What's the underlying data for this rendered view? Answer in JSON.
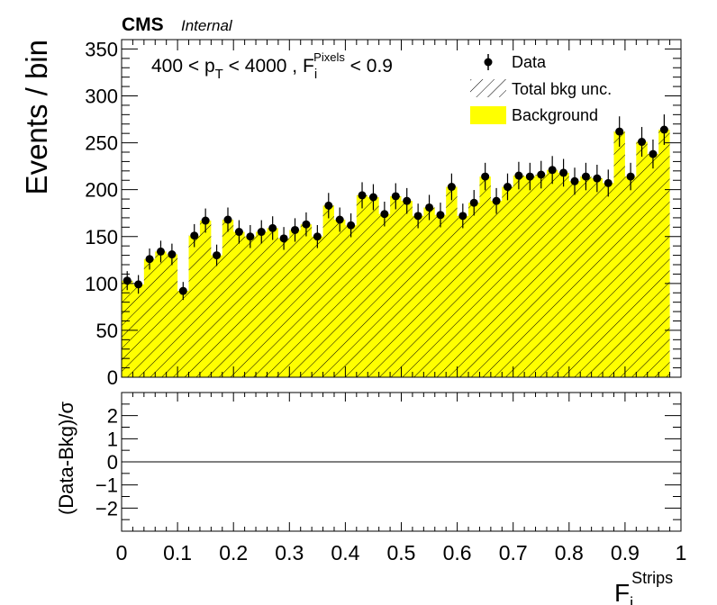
{
  "header": {
    "experiment": "CMS",
    "status": "Internal"
  },
  "cut_label": {
    "prefix": "400 < p",
    "pt_sub": "T",
    "middle": " < 4000 , F",
    "f_sub": "i",
    "f_sup": "Pixels",
    "suffix": " < 0.9"
  },
  "legend": {
    "placement": "top-right",
    "entries": [
      {
        "label": "Data",
        "style": "marker"
      },
      {
        "label": "Total bkg unc.",
        "style": "hatch"
      },
      {
        "label": "Background",
        "style": "fill"
      }
    ]
  },
  "colors": {
    "background_fill": "#ffff00",
    "data_marker": "#000000",
    "hatch": "#000000"
  },
  "chart_data": [
    {
      "type": "bar",
      "panel": "main",
      "ylabel": "Events / bin",
      "xlim": [
        0,
        1
      ],
      "ylim": [
        0,
        360
      ],
      "yticks": [
        "0",
        "50",
        "100",
        "150",
        "200",
        "250",
        "300",
        "350"
      ],
      "bin_edges_start": 0,
      "bin_width": 0.02,
      "series": [
        {
          "name": "Background",
          "style": "filled-histogram",
          "values": [
            103,
            99,
            126,
            134,
            131,
            92,
            151,
            167,
            130,
            168,
            155,
            150,
            155,
            159,
            148,
            157,
            163,
            150,
            183,
            168,
            162,
            194,
            192,
            174,
            193,
            188,
            172,
            181,
            173,
            203,
            172,
            186,
            214,
            188,
            203,
            215,
            214,
            216,
            221,
            218,
            209,
            214,
            212,
            207,
            262,
            214,
            251,
            238,
            264
          ]
        },
        {
          "name": "Data",
          "style": "points-with-errors",
          "values": [
            103,
            99,
            126,
            134,
            131,
            92,
            151,
            167,
            130,
            168,
            155,
            150,
            155,
            159,
            148,
            157,
            163,
            150,
            183,
            168,
            162,
            194,
            192,
            174,
            193,
            188,
            172,
            181,
            173,
            203,
            172,
            186,
            214,
            188,
            203,
            215,
            214,
            216,
            221,
            218,
            209,
            214,
            212,
            207,
            262,
            214,
            251,
            238,
            264
          ]
        }
      ]
    },
    {
      "type": "line",
      "panel": "ratio",
      "ylabel": "(Data-Bkg)/σ",
      "xlabel_main": "F",
      "xlabel_sub": "i",
      "xlabel_sup": "Strips",
      "xlim": [
        0,
        1
      ],
      "ylim": [
        -3,
        3
      ],
      "xticks": [
        "0",
        "0.1",
        "0.2",
        "0.3",
        "0.4",
        "0.5",
        "0.6",
        "0.7",
        "0.8",
        "0.9",
        "1"
      ],
      "yticks": [
        "−2",
        "−1",
        "0",
        "1",
        "2"
      ],
      "series": [
        {
          "x": [
            0,
            1
          ],
          "values": [
            0,
            0
          ]
        }
      ]
    }
  ]
}
